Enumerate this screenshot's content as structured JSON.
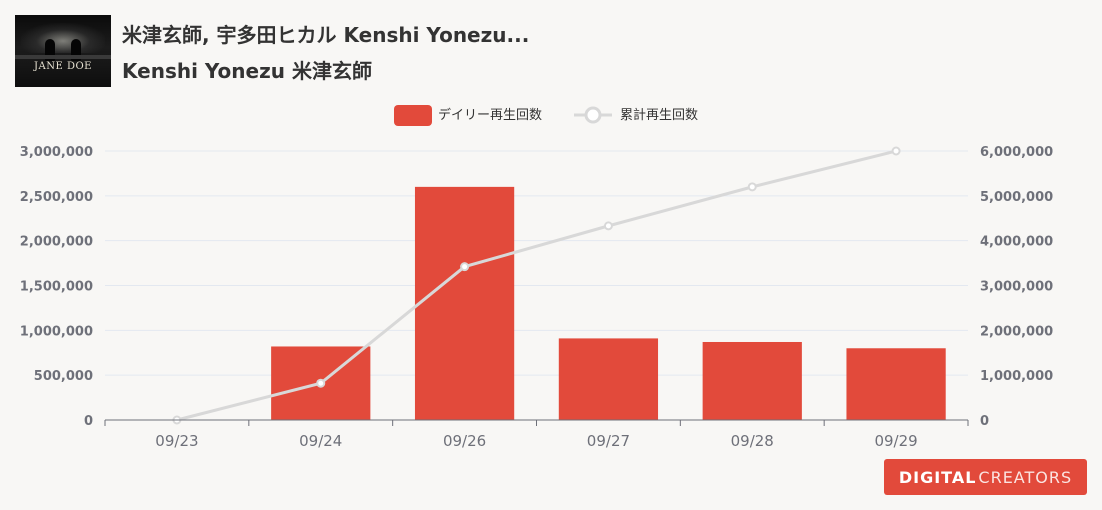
{
  "header": {
    "title": "米津玄師, 宇多田ヒカル Kenshi Yonezu...",
    "subtitle": "Kenshi Yonezu 米津玄師",
    "cover_text": "JANE DOE"
  },
  "logo": {
    "part1": "DIGITAL",
    "part2": "CREATORS"
  },
  "colors": {
    "bar": "#e24a3b",
    "line": "#d8d8d8",
    "grid": "#e3e8f0",
    "axis": "#6e7079"
  },
  "chart_data": {
    "type": "bar",
    "categories": [
      "09/23",
      "09/24",
      "09/26",
      "09/27",
      "09/28",
      "09/29"
    ],
    "series": [
      {
        "name": "デイリー再生回数",
        "type": "bar",
        "axis": "left",
        "values": [
          0,
          820000,
          2600000,
          910000,
          870000,
          800000
        ]
      },
      {
        "name": "累計再生回数",
        "type": "line",
        "axis": "right",
        "values": [
          0,
          820000,
          3420000,
          4330000,
          5200000,
          6000000
        ]
      }
    ],
    "y_left": {
      "min": 0,
      "max": 3000000,
      "ticks": [
        "0",
        "500,000",
        "1,000,000",
        "1,500,000",
        "2,000,000",
        "2,500,000",
        "3,000,000"
      ]
    },
    "y_right": {
      "min": 0,
      "max": 6000000,
      "ticks": [
        "0",
        "1,000,000",
        "2,000,000",
        "3,000,000",
        "4,000,000",
        "5,000,000",
        "6,000,000"
      ]
    },
    "grid": true,
    "legend": "top-center"
  }
}
